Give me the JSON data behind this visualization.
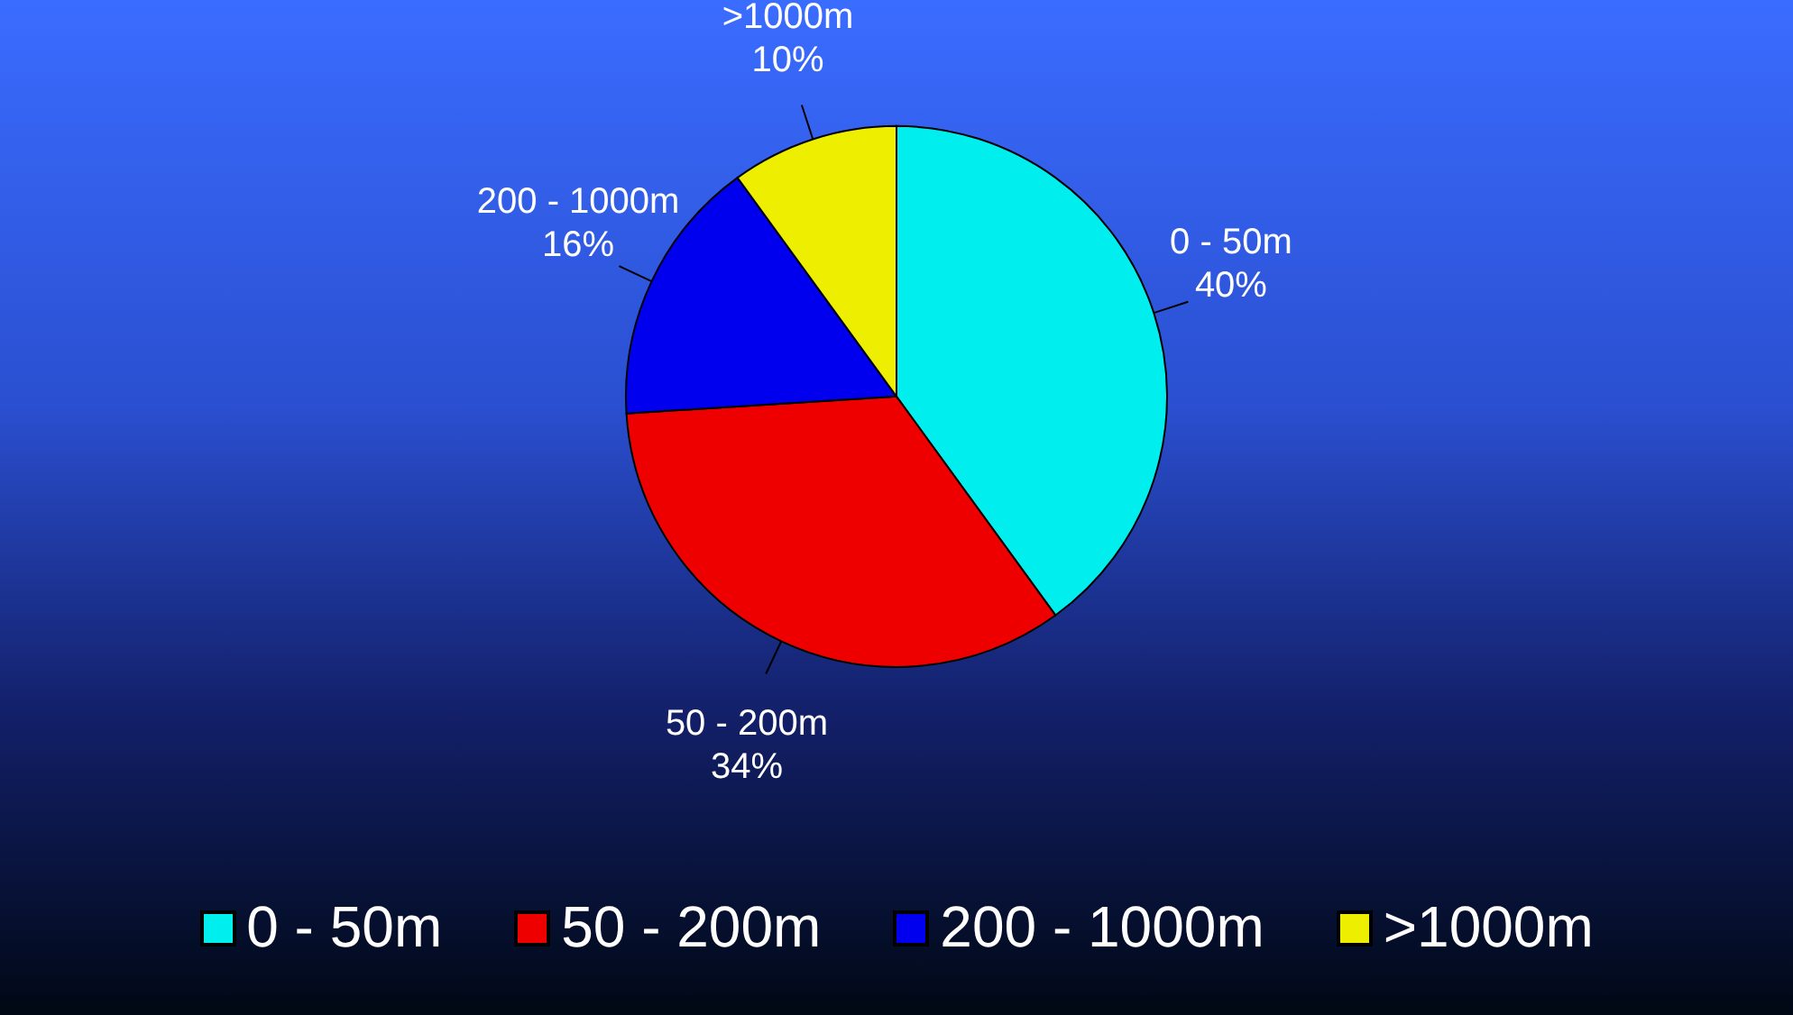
{
  "chart_data": {
    "type": "pie",
    "categories": [
      "0 - 50m",
      "50 - 200m",
      "200 - 1000m",
      ">1000m"
    ],
    "values": [
      40,
      34,
      16,
      10
    ],
    "colors": [
      "#00eeee",
      "#ee0000",
      "#0000ee",
      "#eeee00"
    ],
    "value_labels": [
      "40%",
      "34%",
      "16%",
      "10%"
    ],
    "legend": "bottom"
  }
}
